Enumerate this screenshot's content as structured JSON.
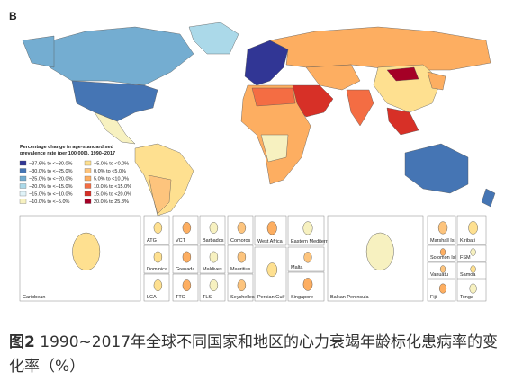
{
  "panel_label": "B",
  "legend": {
    "title_lines": [
      "Percentage change in age-standardised",
      "prevalence rate (per 100 000), 1990–2017"
    ],
    "items": [
      {
        "label": "−37.6% to <−30.0%",
        "color": "#313695"
      },
      {
        "label": "−30.0% to <−25.0%",
        "color": "#4575b4"
      },
      {
        "label": "−25.0% to <−20.0%",
        "color": "#74add1"
      },
      {
        "label": "−20.0% to <−15.0%",
        "color": "#abd9e9"
      },
      {
        "label": "−15.0% to <−10.0%",
        "color": "#e0f3f8"
      },
      {
        "label": "−10.0% to <−5.0%",
        "color": "#f7f1c0"
      },
      {
        "label": "−5.0% to <0.0%",
        "color": "#fee090"
      },
      {
        "label": "0.0% to <5.0%",
        "color": "#fdc47d"
      },
      {
        "label": "5.0% to <10.0%",
        "color": "#fdae61"
      },
      {
        "label": "10.0% to <15.0%",
        "color": "#f46d43"
      },
      {
        "label": "15.0% to <20.0%",
        "color": "#d73027"
      },
      {
        "label": "20.0% to 25.8%",
        "color": "#a50026"
      }
    ]
  },
  "insets": [
    "ATG",
    "VCT",
    "Barbados",
    "Comoros",
    "Dominica",
    "Grenada",
    "Maldives",
    "Mauritius",
    "LCA",
    "TTO",
    "TLS",
    "Seychelles",
    "Caribbean",
    "West Africa",
    "Eastern Mediterranean",
    "Malta",
    "Persian Gulf",
    "Singapore",
    "Balkan Peninsula",
    "Marshall Isl",
    "Kiribati",
    "Solomon Isl",
    "FSM",
    "Vanuatu",
    "Samoa",
    "Fiji",
    "Tonga"
  ],
  "caption": {
    "figure_label": "图2",
    "text": "1990~2017年全球不同国家和地区的心力衰竭年龄标化患病率的变化率（%）"
  }
}
